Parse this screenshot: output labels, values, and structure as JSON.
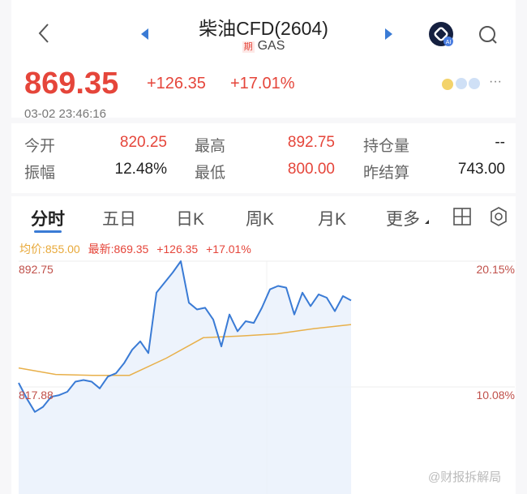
{
  "header": {
    "title": "柴油CFD(2604)",
    "badge": "期",
    "subtitle": "GAS",
    "icons": [
      "back-chevron-icon",
      "prev-arrow-icon",
      "next-arrow-icon",
      "ai-assistant-icon",
      "search-icon"
    ]
  },
  "quote": {
    "price": "869.35",
    "change": "+126.35",
    "change_pct": "+17.01%",
    "time": "03-02 23:46:16",
    "more": "···"
  },
  "stats": [
    {
      "label": "今开",
      "value": "820.25",
      "color": "red"
    },
    {
      "label": "最高",
      "value": "892.75",
      "color": "red"
    },
    {
      "label": "持仓量",
      "value": "--",
      "color": "dark"
    },
    {
      "label": "振幅",
      "value": "12.48%",
      "color": "dark"
    },
    {
      "label": "最低",
      "value": "800.00",
      "color": "red"
    },
    {
      "label": "昨结算",
      "value": "743.00",
      "color": "dark"
    }
  ],
  "tabs": [
    {
      "label": "分时",
      "active": true
    },
    {
      "label": "五日"
    },
    {
      "label": "日K"
    },
    {
      "label": "周K"
    },
    {
      "label": "月K"
    },
    {
      "label": "更多"
    }
  ],
  "legend": {
    "avg": "均价:855.00",
    "latest": "最新:869.35",
    "change": "+126.35",
    "change_pct": "+17.01%"
  },
  "watermark": "@财报拆解局",
  "colors": {
    "up": "#e5453a",
    "price_line": "#3a7bd5",
    "avg_line": "#e8b04a",
    "fill": "#e9f0fb"
  },
  "chart_data": {
    "type": "line",
    "prev_settle": 743.0,
    "ylim": [
      743.0,
      892.75
    ],
    "left_ticks": [
      "892.75",
      "817.88"
    ],
    "right_ticks": [
      "20.15%",
      "10.08%"
    ],
    "session_elapsed_fraction": 0.67,
    "series": [
      {
        "values": [
          820.3,
          811,
          803,
          806,
          812,
          813,
          815,
          821,
          822,
          821,
          817,
          824,
          826,
          832,
          840,
          845,
          838,
          874,
          880,
          886,
          892.75,
          868,
          864,
          865,
          858,
          842,
          861,
          851,
          857,
          856,
          865,
          876,
          878,
          877,
          861,
          874,
          866,
          873,
          871,
          863,
          872,
          869.35
        ]
      },
      {
        "values": [
          829.2,
          825.3,
          824.8,
          824.8,
          835,
          847.2,
          848.2,
          849.5,
          852.6,
          855.0
        ]
      }
    ]
  }
}
